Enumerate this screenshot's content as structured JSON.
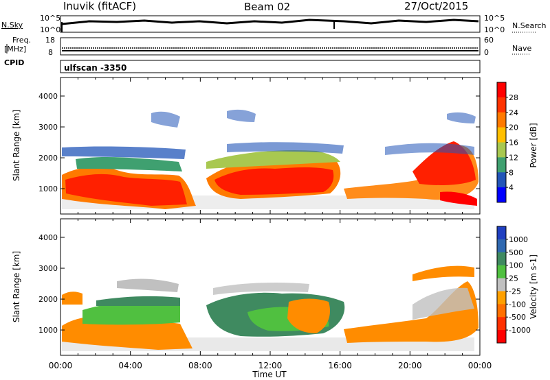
{
  "header": {
    "station": "Inuvik (fitACF)",
    "beam": "Beam 02",
    "date": "27/Oct/2015"
  },
  "side_labels": {
    "nsky": "N.Sky",
    "nsearch": "N.Search",
    "freq": "Freq.",
    "freq_unit": "[MHz]",
    "nave": "Nave",
    "cpid": "CPID",
    "scan": "ulfscan -3350",
    "nsky_ticks": [
      "10^5",
      "10^0"
    ],
    "nsearch_ticks": [
      "10^5",
      "10^0"
    ],
    "freq_ticks": [
      "18",
      "8"
    ],
    "nave_ticks": [
      "60",
      "0"
    ]
  },
  "chart_data": [
    {
      "type": "heatmap",
      "panel": "power",
      "xlabel": "",
      "ylabel": "Slant Range [km]",
      "y_ticks": [
        1000,
        2000,
        3000,
        4000
      ],
      "ylim": [
        180,
        4600
      ],
      "colorbar": {
        "label": "Power [dB]",
        "ticks": [
          "28",
          "24",
          "20",
          "16",
          "12",
          "8",
          "4"
        ],
        "colors": [
          "#ff0000",
          "#ff3300",
          "#ff7a00",
          "#ffbf00",
          "#a8c850",
          "#3fa070",
          "#2255b8",
          "#0000ff"
        ]
      }
    },
    {
      "type": "heatmap",
      "panel": "velocity",
      "xlabel": "Time UT",
      "ylabel": "Slant Range [km]",
      "y_ticks": [
        1000,
        2000,
        3000,
        4000
      ],
      "ylim": [
        180,
        4600
      ],
      "x_ticks": [
        "00:00",
        "04:00",
        "08:00",
        "12:00",
        "16:00",
        "20:00",
        "00:00"
      ],
      "colorbar": {
        "label": "Velocity [m s-1]",
        "ticks": [
          "1000",
          "500",
          "100",
          "25",
          "-25",
          "-100",
          "-500",
          "-1000"
        ],
        "colors": [
          "#1f3fc0",
          "#2f68b0",
          "#3f8a60",
          "#50c040",
          "#c0c0c0",
          "#ffa000",
          "#ff7000",
          "#ff3000",
          "#ff0000"
        ]
      }
    }
  ]
}
